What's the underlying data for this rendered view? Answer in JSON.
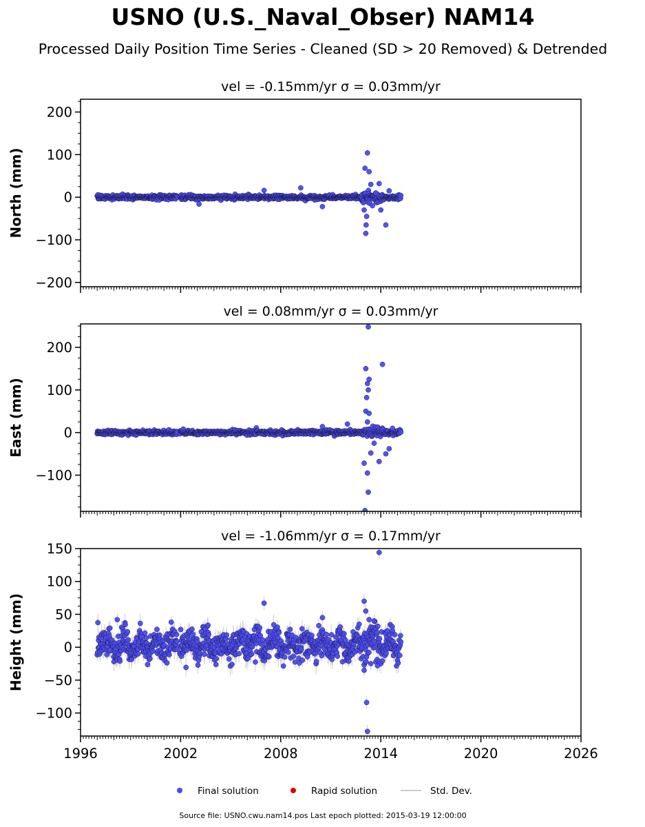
{
  "title": "USNO (U.S._Naval_Obser) NAM14",
  "subtitle": "Processed Daily Position Time Series - Cleaned (SD > 20 Removed) & Detrended",
  "source_note": "Source file: USNO.cwu.nam14.pos  Last epoch plotted: 2015-03-19 12:00:00",
  "colors": {
    "final": "#4b4bef",
    "rapid": "#e00000",
    "stddev": "#cccccc",
    "marker_edge": "#1a1a40"
  },
  "legend": {
    "final": "Final solution",
    "rapid": "Rapid solution",
    "stddev": "Std. Dev."
  },
  "chart_data": [
    {
      "type": "scatter",
      "component": "north",
      "annotation": "vel = -0.15mm/yr   σ = 0.03mm/yr",
      "ylabel": "North (mm)",
      "xlim": [
        1996,
        2026
      ],
      "ylim": [
        -210,
        230
      ],
      "xticks": [
        1996,
        2002,
        2008,
        2014,
        2020,
        2026
      ],
      "xtick_labels": [
        "",
        "",
        "",
        "",
        "",
        ""
      ],
      "yticks": [
        -200,
        -100,
        0,
        100,
        200
      ],
      "ytick_labels": [
        "−200",
        "−100",
        "0",
        "100",
        "200"
      ],
      "data_span": [
        1997.0,
        2015.2
      ],
      "gap": [
        2001.8,
        2001.95
      ],
      "base_scatter": 2.5,
      "outliers": [
        {
          "x": 2013.05,
          "y": 68
        },
        {
          "x": 2013.2,
          "y": 104
        },
        {
          "x": 2013.3,
          "y": 60
        },
        {
          "x": 2013.1,
          "y": -85
        },
        {
          "x": 2013.12,
          "y": -65
        },
        {
          "x": 2013.15,
          "y": -45
        },
        {
          "x": 2013.4,
          "y": 30
        },
        {
          "x": 2013.0,
          "y": -30
        },
        {
          "x": 2013.9,
          "y": 32
        },
        {
          "x": 2014.0,
          "y": -30
        },
        {
          "x": 2014.3,
          "y": -65
        },
        {
          "x": 2014.5,
          "y": 15
        },
        {
          "x": 2010.5,
          "y": -22
        },
        {
          "x": 2009.2,
          "y": 22
        },
        {
          "x": 2007.0,
          "y": 16
        },
        {
          "x": 2003.1,
          "y": -16
        },
        {
          "x": 2013.5,
          "y": -20
        },
        {
          "x": 2013.7,
          "y": 10
        }
      ]
    },
    {
      "type": "scatter",
      "component": "east",
      "annotation": "vel = 0.08mm/yr   σ = 0.03mm/yr",
      "ylabel": "East (mm)",
      "xlim": [
        1996,
        2026
      ],
      "ylim": [
        -185,
        255
      ],
      "xticks": [
        1996,
        2002,
        2008,
        2014,
        2020,
        2026
      ],
      "xtick_labels": [
        "",
        "",
        "",
        "",
        "",
        ""
      ],
      "yticks": [
        -100,
        0,
        100,
        200
      ],
      "ytick_labels": [
        "−100",
        "0",
        "100",
        "200"
      ],
      "data_span": [
        1997.0,
        2015.2
      ],
      "gap": [
        2001.8,
        2001.95
      ],
      "base_scatter": 2.5,
      "outliers": [
        {
          "x": 2013.25,
          "y": 248
        },
        {
          "x": 2013.1,
          "y": 150
        },
        {
          "x": 2013.3,
          "y": 125
        },
        {
          "x": 2013.2,
          "y": 115
        },
        {
          "x": 2013.25,
          "y": 100
        },
        {
          "x": 2013.15,
          "y": 82
        },
        {
          "x": 2014.1,
          "y": 160
        },
        {
          "x": 2013.1,
          "y": 50
        },
        {
          "x": 2013.3,
          "y": 45
        },
        {
          "x": 2013.2,
          "y": 25
        },
        {
          "x": 2013.0,
          "y": -72
        },
        {
          "x": 2013.2,
          "y": -95
        },
        {
          "x": 2013.25,
          "y": -140
        },
        {
          "x": 2013.05,
          "y": -183
        },
        {
          "x": 2013.4,
          "y": -48
        },
        {
          "x": 2013.9,
          "y": -68
        },
        {
          "x": 2014.3,
          "y": -50
        },
        {
          "x": 2014.5,
          "y": -38
        },
        {
          "x": 2012.0,
          "y": 20
        },
        {
          "x": 2010.5,
          "y": 14
        },
        {
          "x": 2014.7,
          "y": 10
        },
        {
          "x": 2013.6,
          "y": -25
        }
      ]
    },
    {
      "type": "scatter",
      "component": "height",
      "annotation": "vel = -1.06mm/yr   σ = 0.17mm/yr",
      "ylabel": "Height (mm)",
      "xlim": [
        1996,
        2026
      ],
      "ylim": [
        -135,
        150
      ],
      "xticks": [
        1996,
        2002,
        2008,
        2014,
        2020,
        2026
      ],
      "xtick_labels": [
        "1996",
        "2002",
        "2008",
        "2014",
        "2020",
        "2026"
      ],
      "yticks": [
        -100,
        -50,
        0,
        50,
        100,
        150
      ],
      "ytick_labels": [
        "−100",
        "−50",
        "0",
        "50",
        "100",
        "150"
      ],
      "data_span": [
        1997.0,
        2015.2
      ],
      "gap": [
        2001.8,
        2001.95
      ],
      "base_scatter": 11,
      "outliers": [
        {
          "x": 2013.9,
          "y": 144
        },
        {
          "x": 2007.0,
          "y": 67
        },
        {
          "x": 2013.0,
          "y": 70
        },
        {
          "x": 2013.1,
          "y": 55
        },
        {
          "x": 2013.15,
          "y": -84
        },
        {
          "x": 2013.2,
          "y": -128
        },
        {
          "x": 2013.4,
          "y": -25
        },
        {
          "x": 2013.8,
          "y": -28
        },
        {
          "x": 2013.3,
          "y": 42
        },
        {
          "x": 2012.7,
          "y": 35
        },
        {
          "x": 2013.6,
          "y": 40
        },
        {
          "x": 2014.7,
          "y": 25
        },
        {
          "x": 2013.0,
          "y": -35
        },
        {
          "x": 1998.2,
          "y": 42
        },
        {
          "x": 2010.5,
          "y": 45
        },
        {
          "x": 2002.0,
          "y": 27
        }
      ]
    }
  ]
}
